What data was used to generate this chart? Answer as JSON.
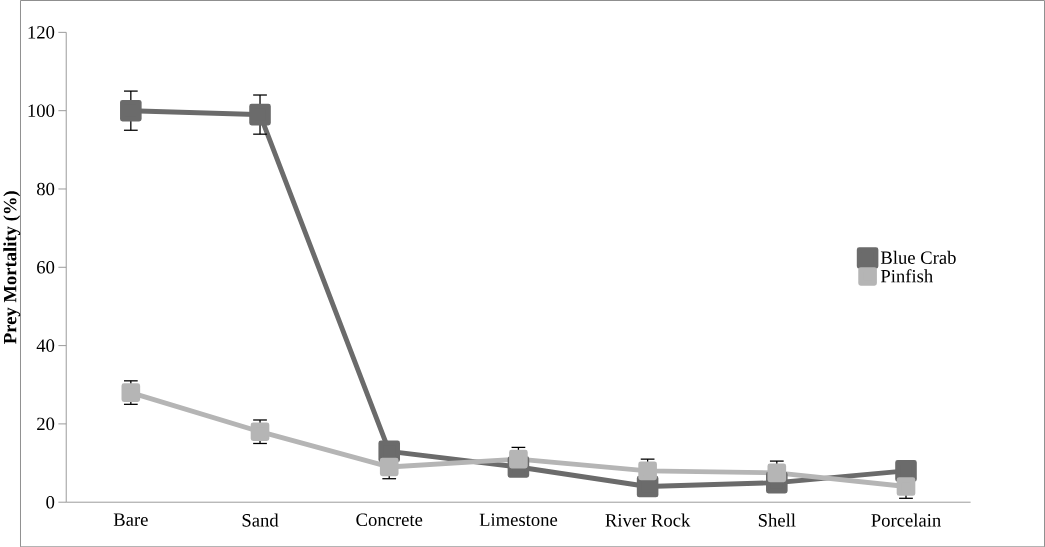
{
  "chart_data": {
    "type": "line",
    "ylabel": "Prey Mortality (%)",
    "categories": [
      "Bare",
      "Sand",
      "Concrete",
      "Limestone",
      "River Rock",
      "Shell",
      "Porcelain"
    ],
    "series": [
      {
        "name": "Blue Crab",
        "color": "#6b6b6b",
        "values": [
          100,
          99,
          13,
          9,
          4,
          5,
          8
        ],
        "errors": [
          5,
          5,
          null,
          null,
          null,
          null,
          null
        ]
      },
      {
        "name": "Pinfish",
        "color": "#b5b5b5",
        "values": [
          28,
          18,
          9,
          11,
          8,
          7.5,
          4
        ],
        "errors": [
          3,
          3,
          3,
          3,
          3,
          3,
          3
        ]
      }
    ],
    "ylim": [
      0,
      120
    ],
    "yticks": [
      0,
      20,
      40,
      60,
      80,
      100,
      120
    ],
    "legend": "right",
    "marker": "square",
    "grid": false
  }
}
